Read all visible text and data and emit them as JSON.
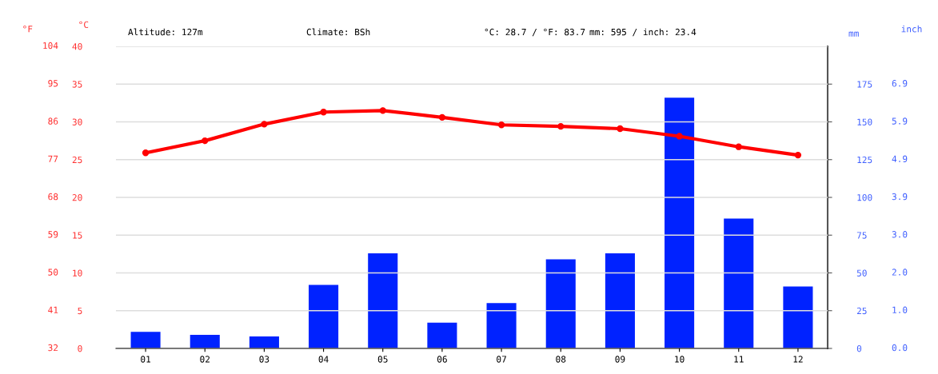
{
  "chart_data": {
    "type": "bar",
    "categories": [
      "01",
      "02",
      "03",
      "04",
      "05",
      "06",
      "07",
      "08",
      "09",
      "10",
      "11",
      "12"
    ],
    "series": [
      {
        "type": "line",
        "color": "#ff0000",
        "values": [
          25.9,
          27.5,
          29.7,
          31.3,
          31.5,
          30.6,
          29.6,
          29.4,
          29.1,
          28.1,
          26.7,
          25.6
        ]
      },
      {
        "axis": "y2",
        "color": "#0022ff",
        "values": [
          11,
          9,
          8,
          42,
          63,
          17,
          30,
          59,
          63,
          166,
          86,
          41
        ]
      }
    ],
    "ylabel": "°C",
    "ylim": [
      0,
      40
    ],
    "yticks": [
      0,
      5,
      10,
      15,
      20,
      25,
      30,
      35,
      40
    ],
    "y2label": "mm",
    "y2lim": [
      0,
      200
    ],
    "y2ticks": [
      0,
      25,
      50,
      75,
      100,
      125,
      150,
      175
    ],
    "annotations": [
      "Altitude: 127m",
      "Climate: BSh",
      "°C: 28.7 / °F: 83.7",
      "mm: 595 / inch: 23.4",
      "°F",
      "32",
      "41",
      "50",
      "59",
      "68",
      "77",
      "86",
      "95",
      "104",
      "inch",
      "0.0",
      "1.0",
      "2.0",
      "3.0",
      "3.9",
      "4.9",
      "5.9",
      "6.9"
    ],
    "grid": "y",
    "marker": "circle",
    "line_style": "solid",
    "legend": false
  }
}
